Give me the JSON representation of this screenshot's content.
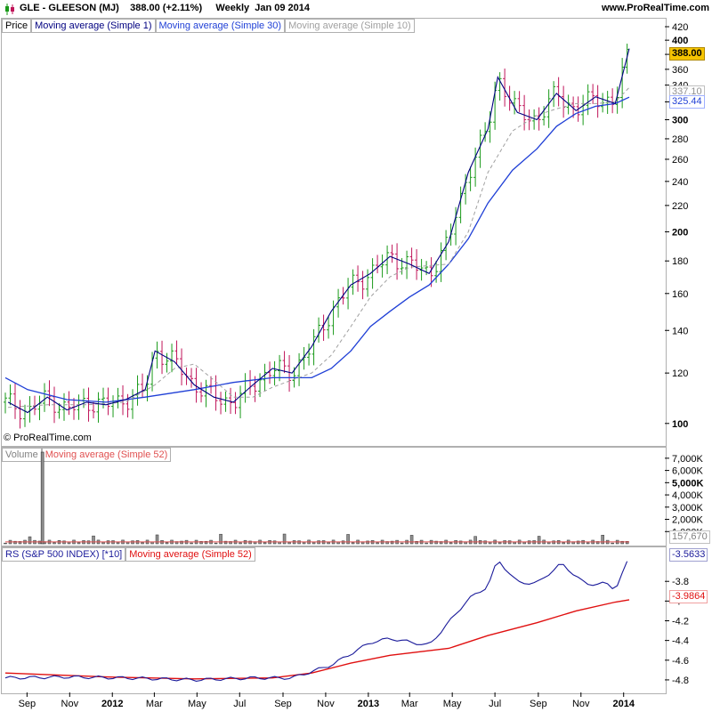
{
  "header": {
    "symbol_line": "GLE - GLEESON (MJ)",
    "price_change": "388.00 (+2.11%)",
    "period": "Weekly",
    "date": "Jan 09 2014",
    "site": "www.ProRealTime.com"
  },
  "copyright": "© ProRealTime.com",
  "legends": {
    "price": [
      "Price",
      "Moving average (Simple 1)",
      "Moving average (Simple 30)",
      "Moving average (Simple 10)"
    ],
    "volume": [
      "Volume",
      "Moving average (Simple 52)"
    ],
    "rs": [
      "RS (S&P 500 INDEX) [*10]",
      "Moving average (Simple 52)"
    ]
  },
  "tags": {
    "price_last": "388.00",
    "ma10_last": "337.10",
    "ma30_last": "325.44",
    "vol_ma_last": "157,670",
    "rs_last": "-3.5633",
    "rs_ma_last": "-3.9864"
  },
  "colors": {
    "up_bar": "#1a9a1a",
    "down_bar": "#c0155a",
    "price_line": "#000080",
    "ma30": "#1f3fd6",
    "ma10": "#a0a0a0",
    "rs_line": "#1a1a9a",
    "rs_ma": "#e01010",
    "tag_yellow": "#f5c400"
  },
  "chart_data": [
    {
      "type": "line",
      "title": "GLE - GLEESON (MJ)",
      "scale": "log",
      "ylim": [
        94,
        420
      ],
      "y_ticks": [
        "100",
        "120",
        "140",
        "160",
        "180",
        "200",
        "220",
        "240",
        "260",
        "280",
        "300",
        "320",
        "340",
        "360",
        "380",
        "400",
        "420"
      ],
      "x_ticks": [
        "Sep",
        "Nov",
        "2012",
        "Mar",
        "May",
        "Jul",
        "Sep",
        "Nov",
        "2013",
        "Mar",
        "May",
        "Jul",
        "Sep",
        "Nov",
        "2014"
      ],
      "x_range": [
        "2011-08-01",
        "2014-01-09"
      ],
      "series": [
        {
          "name": "Moving average (Simple 1)",
          "x": [
            "2011-08-05",
            "2011-09-02",
            "2011-09-30",
            "2011-10-28",
            "2011-11-25",
            "2011-12-23",
            "2012-01-20",
            "2012-02-17",
            "2012-03-02",
            "2012-03-30",
            "2012-04-27",
            "2012-05-25",
            "2012-06-22",
            "2012-07-20",
            "2012-08-17",
            "2012-09-14",
            "2012-10-12",
            "2012-11-09",
            "2012-12-07",
            "2013-01-04",
            "2013-02-01",
            "2013-03-01",
            "2013-03-29",
            "2013-04-26",
            "2013-05-24",
            "2013-06-21",
            "2013-07-05",
            "2013-08-02",
            "2013-08-30",
            "2013-09-27",
            "2013-10-25",
            "2013-11-22",
            "2013-12-20",
            "2014-01-09"
          ],
          "y": [
            108,
            104,
            110,
            105,
            108,
            107,
            109,
            113,
            130,
            125,
            115,
            110,
            108,
            115,
            122,
            120,
            132,
            150,
            165,
            172,
            183,
            178,
            172,
            193,
            248,
            290,
            350,
            308,
            300,
            330,
            310,
            326,
            318,
            388
          ]
        },
        {
          "name": "Moving average (Simple 10)",
          "x": [
            "2011-08-05",
            "2011-09-30",
            "2011-11-25",
            "2012-01-20",
            "2012-03-02",
            "2012-03-30",
            "2012-04-27",
            "2012-05-25",
            "2012-06-22",
            "2012-07-20",
            "2012-08-17",
            "2012-09-14",
            "2012-10-12",
            "2012-11-09",
            "2012-12-07",
            "2013-01-04",
            "2013-02-01",
            "2013-03-01",
            "2013-04-26",
            "2013-05-24",
            "2013-06-21",
            "2013-07-26",
            "2013-08-30",
            "2013-09-27",
            "2013-10-25",
            "2013-11-22",
            "2013-12-20",
            "2014-01-09"
          ],
          "y": [
            106,
            107,
            107,
            108,
            115,
            122,
            124,
            117,
            110,
            110,
            114,
            117,
            120,
            128,
            142,
            158,
            170,
            176,
            178,
            200,
            248,
            288,
            305,
            312,
            318,
            318,
            320,
            337.1
          ]
        },
        {
          "name": "Moving average (Simple 30)",
          "x": [
            "2011-08-01",
            "2011-09-02",
            "2011-10-28",
            "2011-12-23",
            "2012-02-17",
            "2012-04-27",
            "2012-06-22",
            "2012-08-17",
            "2012-10-12",
            "2012-11-09",
            "2012-12-07",
            "2013-01-04",
            "2013-02-01",
            "2013-03-01",
            "2013-03-29",
            "2013-04-26",
            "2013-05-24",
            "2013-06-21",
            "2013-07-26",
            "2013-08-30",
            "2013-09-27",
            "2013-10-25",
            "2013-11-22",
            "2013-12-20",
            "2014-01-09"
          ],
          "y": [
            118,
            113,
            109,
            108,
            110,
            113,
            116,
            118,
            118,
            122,
            130,
            142,
            150,
            158,
            165,
            178,
            195,
            222,
            250,
            270,
            293,
            307,
            315,
            318,
            325.44
          ]
        }
      ]
    },
    {
      "type": "bar",
      "title": "Volume",
      "ylabel_ticks": [
        "1,000K",
        "2,000K",
        "3,000K",
        "4,000K",
        "5,000K",
        "6,000K",
        "7,000K"
      ],
      "ylim": [
        0,
        7500000
      ],
      "spike": {
        "x": "2011-09-23",
        "value": 7500000
      },
      "moving_average_52": 157670
    },
    {
      "type": "line",
      "title": "RS (S&P 500 INDEX) [*10]",
      "ylim": [
        -4.9,
        -3.5
      ],
      "y_ticks": [
        "-4.8",
        "-4.6",
        "-4.4",
        "-4.2",
        "-4",
        "-3.8"
      ],
      "series": [
        {
          "name": "RS (S&P 500 INDEX) [*10]",
          "x": [
            "2011-08-05",
            "2011-10-28",
            "2012-01-20",
            "2012-04-27",
            "2012-07-20",
            "2012-09-14",
            "2012-11-09",
            "2013-01-04",
            "2013-02-01",
            "2013-03-29",
            "2013-05-24",
            "2013-06-21",
            "2013-07-05",
            "2013-08-02",
            "2013-08-30",
            "2013-10-04",
            "2013-11-08",
            "2013-12-06",
            "2013-12-20",
            "2014-01-09"
          ],
          "y": [
            -4.78,
            -4.77,
            -4.78,
            -4.8,
            -4.78,
            -4.78,
            -4.65,
            -4.42,
            -4.38,
            -4.45,
            -3.98,
            -3.85,
            -3.58,
            -3.81,
            -3.82,
            -3.62,
            -3.83,
            -3.82,
            -3.88,
            -3.5633
          ]
        },
        {
          "name": "Moving average (Simple 52)",
          "x": [
            "2011-08-01",
            "2011-12-23",
            "2012-04-27",
            "2012-08-17",
            "2012-10-12",
            "2012-12-07",
            "2013-02-01",
            "2013-04-26",
            "2013-06-21",
            "2013-08-30",
            "2013-10-25",
            "2013-12-20",
            "2014-01-09"
          ],
          "y": [
            -4.73,
            -4.77,
            -4.79,
            -4.78,
            -4.73,
            -4.63,
            -4.55,
            -4.48,
            -4.35,
            -4.22,
            -4.1,
            -4.01,
            -3.9864
          ]
        }
      ]
    }
  ]
}
